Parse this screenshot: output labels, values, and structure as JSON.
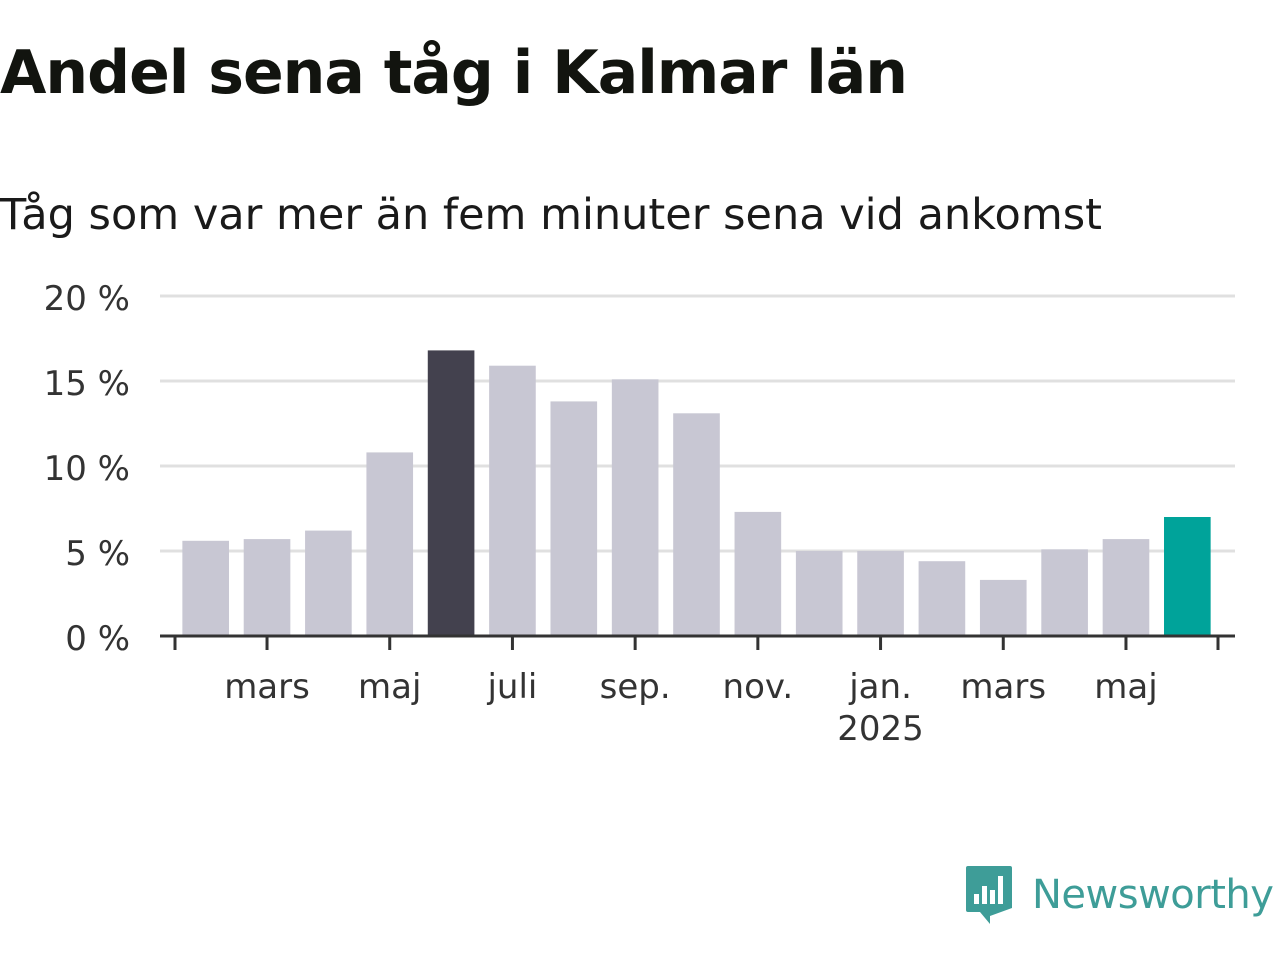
{
  "title": "Andel sena tåg i Kalmar län",
  "subtitle": "Tåg som var mer än fem minuter sena vid ankomst",
  "brand": {
    "name": "Newsworthy",
    "icon": "newsworthy-logo-icon",
    "color": "#3e9d98"
  },
  "chart_data": {
    "type": "bar",
    "ylim": [
      0,
      20
    ],
    "yticks": [
      "0 %",
      "5 %",
      "10 %",
      "15 %",
      "20 %"
    ],
    "yticks_values": [
      0,
      5,
      10,
      15,
      20
    ],
    "grid": true,
    "categories": [
      "2024-02",
      "2024-03",
      "2024-04",
      "2024-05",
      "2024-06",
      "2024-07",
      "2024-08",
      "2024-09",
      "2024-10",
      "2024-11",
      "2024-12",
      "2025-01",
      "2025-02",
      "2025-03",
      "2025-04",
      "2025-05",
      "2025-06"
    ],
    "values": [
      5.6,
      5.7,
      6.2,
      10.8,
      16.8,
      15.9,
      13.8,
      15.1,
      13.1,
      7.3,
      5.0,
      5.0,
      4.4,
      3.3,
      5.1,
      5.7,
      7.0
    ],
    "xtick_labels": [
      {
        "label": "mars",
        "month": "2024-03"
      },
      {
        "label": "maj",
        "month": "2024-05"
      },
      {
        "label": "juli",
        "month": "2024-07"
      },
      {
        "label": "sep.",
        "month": "2024-09"
      },
      {
        "label": "nov.",
        "month": "2024-11"
      },
      {
        "label": "jan.",
        "month": "2025-01",
        "year": "2025"
      },
      {
        "label": "mars",
        "month": "2025-03"
      },
      {
        "label": "maj",
        "month": "2025-05"
      }
    ],
    "highlight": {
      "max": "2024-06",
      "latest": "2025-06"
    },
    "colors": {
      "default": "#c8c7d3",
      "max": "#43414e",
      "latest": "#00a39a",
      "grid": "#e0e0e0",
      "axis": "#333333"
    }
  }
}
